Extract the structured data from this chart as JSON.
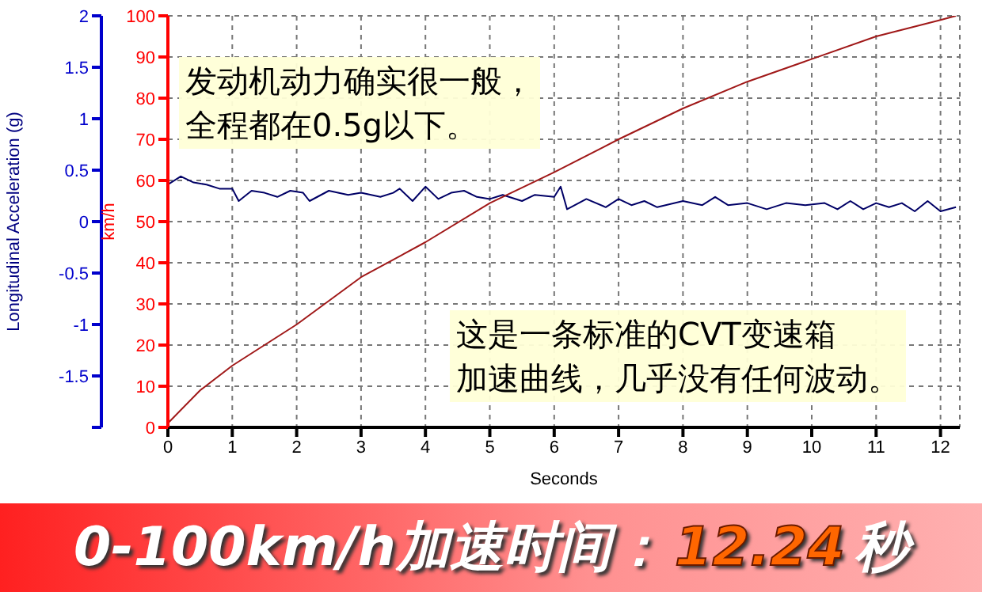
{
  "chart_data": {
    "type": "line",
    "title": "0-100km/h加速时间：12.24 秒",
    "xlabel": "Seconds",
    "ylabel": "km/h",
    "y2label": "Longitudinal Acceleration (g)",
    "annotations": [
      "发动机动力确实很一般，全程都在0.5g以下。",
      "这是一条标准的CVT变速箱加速曲线，几乎没有任何波动。"
    ],
    "xlim": [
      0,
      12.3
    ],
    "xticks": [
      0,
      1,
      2,
      3,
      4,
      5,
      6,
      7,
      8,
      9,
      10,
      11,
      12
    ],
    "ylim": [
      0,
      100
    ],
    "yticks": [
      0,
      10,
      20,
      30,
      40,
      50,
      60,
      70,
      80,
      90,
      100
    ],
    "y2lim": [
      -2,
      2
    ],
    "y2ticks": [
      {
        "value": -2,
        "label": null
      },
      -1.5,
      -1,
      -0.5,
      0,
      0.5,
      1,
      1.5,
      2
    ],
    "grid": true,
    "marker": "none",
    "line_style": "solid",
    "series": [
      {
        "color": "#000066",
        "axis": "y2",
        "x": [
          0,
          0.2,
          0.4,
          0.6,
          0.8,
          1.0,
          1.1,
          1.3,
          1.5,
          1.7,
          1.9,
          2.1,
          2.2,
          2.5,
          2.8,
          3.0,
          3.3,
          3.5,
          3.6,
          3.8,
          4.0,
          4.2,
          4.4,
          4.6,
          4.8,
          5.0,
          5.2,
          5.5,
          5.7,
          6.0,
          6.1,
          6.2,
          6.5,
          6.8,
          7.0,
          7.2,
          7.4,
          7.6,
          8.0,
          8.3,
          8.5,
          8.7,
          9.0,
          9.3,
          9.6,
          9.9,
          10.2,
          10.4,
          10.6,
          10.8,
          11.0,
          11.2,
          11.4,
          11.6,
          11.8,
          12.0,
          12.24
        ],
        "values": [
          0.36,
          0.44,
          0.38,
          0.36,
          0.32,
          0.32,
          0.2,
          0.3,
          0.28,
          0.24,
          0.3,
          0.28,
          0.2,
          0.3,
          0.26,
          0.28,
          0.24,
          0.28,
          0.32,
          0.2,
          0.34,
          0.22,
          0.28,
          0.3,
          0.24,
          0.22,
          0.26,
          0.2,
          0.26,
          0.24,
          0.34,
          0.12,
          0.22,
          0.14,
          0.22,
          0.16,
          0.2,
          0.14,
          0.2,
          0.16,
          0.24,
          0.16,
          0.18,
          0.12,
          0.18,
          0.16,
          0.18,
          0.12,
          0.2,
          0.12,
          0.18,
          0.14,
          0.18,
          0.1,
          0.2,
          0.1,
          0.14
        ]
      },
      {
        "color": "#a01818",
        "axis": "y",
        "x": [
          0,
          0.5,
          1,
          1.5,
          2,
          3,
          4,
          5,
          6,
          7,
          8,
          9,
          10,
          11,
          12,
          12.24
        ],
        "values": [
          1,
          9,
          15,
          20,
          25,
          36.5,
          45,
          54.5,
          62,
          70,
          77.5,
          84,
          89.5,
          95,
          99,
          100
        ]
      }
    ]
  }
}
